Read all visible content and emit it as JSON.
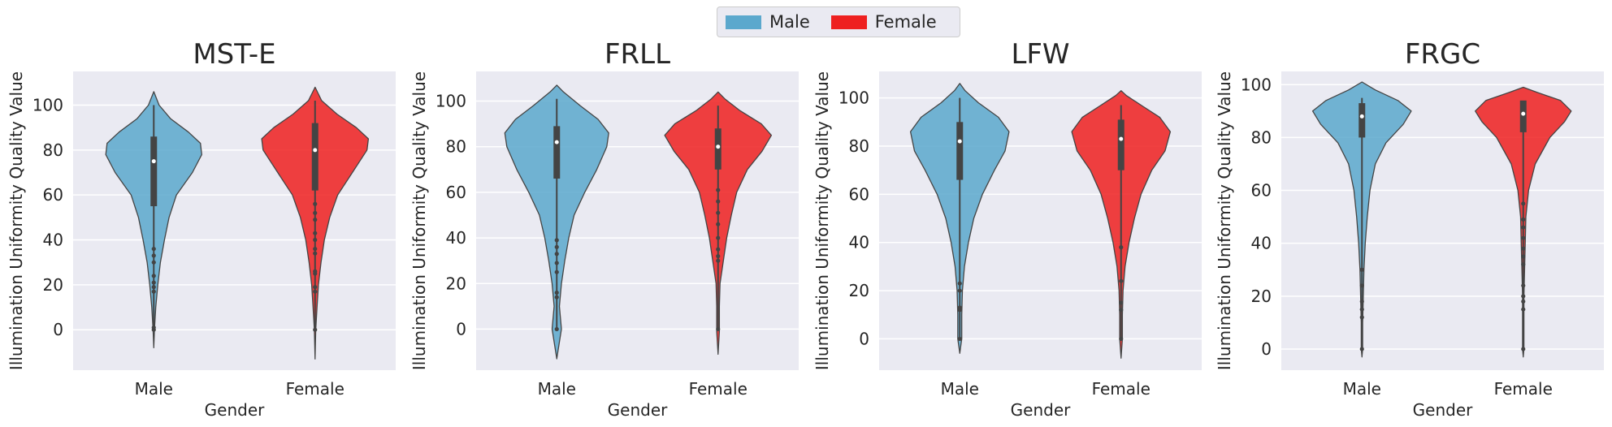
{
  "legend": {
    "items": [
      {
        "label": "Male",
        "color": "#5ba8cd"
      },
      {
        "label": "Female",
        "color": "#ee2020"
      }
    ]
  },
  "chart_data": [
    {
      "type": "violin",
      "title": "MST-E",
      "xlabel": "Gender",
      "ylabel": "Illumination Uniformity Quality Value",
      "categories": [
        "Male",
        "Female"
      ],
      "yticks": [
        0,
        20,
        40,
        60,
        80,
        100
      ],
      "ylim": [
        -18,
        115
      ],
      "grid": true,
      "series": [
        {
          "name": "Male",
          "color": "#5ba8cd",
          "range": [
            -8,
            106
          ],
          "median": 75,
          "q1": 55,
          "q3": 86,
          "profile": [
            [
              -8,
              0
            ],
            [
              0,
              1
            ],
            [
              10,
              3
            ],
            [
              20,
              6
            ],
            [
              30,
              10
            ],
            [
              40,
              16
            ],
            [
              50,
              23
            ],
            [
              60,
              34
            ],
            [
              70,
              58
            ],
            [
              78,
              72
            ],
            [
              83,
              70
            ],
            [
              88,
              52
            ],
            [
              94,
              25
            ],
            [
              100,
              8
            ],
            [
              106,
              0
            ]
          ],
          "outliers": [
            0,
            1,
            17,
            19,
            21,
            24,
            30,
            33,
            36
          ]
        },
        {
          "name": "Female",
          "color": "#ee2020",
          "range": [
            -13,
            108
          ],
          "median": 80,
          "q1": 62,
          "q3": 92,
          "profile": [
            [
              -13,
              0
            ],
            [
              0,
              1
            ],
            [
              10,
              3
            ],
            [
              20,
              5
            ],
            [
              30,
              9
            ],
            [
              40,
              14
            ],
            [
              50,
              22
            ],
            [
              60,
              34
            ],
            [
              70,
              56
            ],
            [
              80,
              78
            ],
            [
              85,
              80
            ],
            [
              90,
              62
            ],
            [
              96,
              33
            ],
            [
              102,
              10
            ],
            [
              108,
              0
            ]
          ],
          "outliers": [
            0,
            17,
            19,
            25,
            26,
            34,
            36,
            40,
            43,
            49,
            52,
            56
          ]
        }
      ]
    },
    {
      "type": "violin",
      "title": "FRLL",
      "xlabel": "Gender",
      "ylabel": "Illumination Uniformity Quality Value",
      "categories": [
        "Male",
        "Female"
      ],
      "yticks": [
        0,
        20,
        40,
        60,
        80,
        100
      ],
      "ylim": [
        -18,
        113
      ],
      "grid": true,
      "series": [
        {
          "name": "Male",
          "color": "#5ba8cd",
          "range": [
            -13,
            107
          ],
          "median": 82,
          "q1": 66,
          "q3": 89,
          "profile": [
            [
              -13,
              0
            ],
            [
              0,
              7
            ],
            [
              10,
              4
            ],
            [
              20,
              7
            ],
            [
              30,
              12
            ],
            [
              40,
              18
            ],
            [
              50,
              26
            ],
            [
              60,
              42
            ],
            [
              70,
              60
            ],
            [
              80,
              75
            ],
            [
              86,
              78
            ],
            [
              92,
              62
            ],
            [
              98,
              35
            ],
            [
              104,
              10
            ],
            [
              107,
              0
            ]
          ],
          "outliers": [
            0,
            14,
            16,
            25,
            29,
            33,
            36,
            39
          ]
        },
        {
          "name": "Female",
          "color": "#ee2020",
          "range": [
            -11,
            104
          ],
          "median": 80,
          "q1": 70,
          "q3": 88,
          "profile": [
            [
              -11,
              0
            ],
            [
              -1,
              2
            ],
            [
              10,
              2
            ],
            [
              20,
              3
            ],
            [
              30,
              8
            ],
            [
              40,
              13
            ],
            [
              50,
              20
            ],
            [
              60,
              28
            ],
            [
              70,
              44
            ],
            [
              78,
              66
            ],
            [
              85,
              80
            ],
            [
              90,
              65
            ],
            [
              96,
              32
            ],
            [
              101,
              10
            ],
            [
              104,
              0
            ]
          ],
          "outliers": [
            0,
            30,
            32,
            35,
            40,
            46,
            51,
            56,
            61
          ]
        }
      ]
    },
    {
      "type": "violin",
      "title": "LFW",
      "xlabel": "Gender",
      "ylabel": "Illumination Uniformity Quality Value",
      "categories": [
        "Male",
        "Female"
      ],
      "yticks": [
        0,
        20,
        40,
        60,
        80,
        100
      ],
      "ylim": [
        -13,
        111
      ],
      "grid": true,
      "series": [
        {
          "name": "Male",
          "color": "#5ba8cd",
          "range": [
            -6,
            106
          ],
          "median": 82,
          "q1": 66,
          "q3": 90,
          "profile": [
            [
              -6,
              0
            ],
            [
              0,
              3
            ],
            [
              10,
              3
            ],
            [
              20,
              4
            ],
            [
              30,
              7
            ],
            [
              40,
              13
            ],
            [
              50,
              21
            ],
            [
              60,
              34
            ],
            [
              70,
              52
            ],
            [
              78,
              68
            ],
            [
              86,
              74
            ],
            [
              92,
              58
            ],
            [
              98,
              28
            ],
            [
              103,
              8
            ],
            [
              106,
              0
            ]
          ],
          "outliers": [
            0,
            12,
            13,
            20,
            23
          ]
        },
        {
          "name": "Female",
          "color": "#ee2020",
          "range": [
            -8,
            103
          ],
          "median": 83,
          "q1": 70,
          "q3": 91,
          "profile": [
            [
              -8,
              0
            ],
            [
              0,
              2
            ],
            [
              10,
              2
            ],
            [
              20,
              3
            ],
            [
              30,
              6
            ],
            [
              40,
              12
            ],
            [
              50,
              20
            ],
            [
              60,
              30
            ],
            [
              70,
              46
            ],
            [
              78,
              66
            ],
            [
              86,
              74
            ],
            [
              92,
              58
            ],
            [
              97,
              30
            ],
            [
              101,
              8
            ],
            [
              103,
              0
            ]
          ],
          "outliers": [
            0,
            12,
            15,
            24,
            38
          ]
        }
      ]
    },
    {
      "type": "violin",
      "title": "FRGC",
      "xlabel": "Gender",
      "ylabel": "Illumination Uniformity Quality Value",
      "categories": [
        "Male",
        "Female"
      ],
      "yticks": [
        0,
        20,
        40,
        60,
        80,
        100
      ],
      "ylim": [
        -8,
        105
      ],
      "grid": true,
      "series": [
        {
          "name": "Male",
          "color": "#5ba8cd",
          "range": [
            -3,
            101
          ],
          "median": 88,
          "q1": 80,
          "q3": 93,
          "profile": [
            [
              -3,
              0
            ],
            [
              0,
              1
            ],
            [
              10,
              1
            ],
            [
              20,
              2
            ],
            [
              30,
              3
            ],
            [
              40,
              5
            ],
            [
              50,
              8
            ],
            [
              60,
              12
            ],
            [
              70,
              20
            ],
            [
              78,
              36
            ],
            [
              85,
              62
            ],
            [
              90,
              74
            ],
            [
              94,
              54
            ],
            [
              98,
              20
            ],
            [
              101,
              0
            ]
          ],
          "outliers": [
            0,
            12,
            15,
            18,
            24,
            30
          ]
        },
        {
          "name": "Female",
          "color": "#ee2020",
          "range": [
            -3,
            99
          ],
          "median": 89,
          "q1": 82,
          "q3": 94,
          "profile": [
            [
              -3,
              0
            ],
            [
              0,
              1
            ],
            [
              10,
              1
            ],
            [
              20,
              1
            ],
            [
              30,
              2
            ],
            [
              40,
              3
            ],
            [
              50,
              4
            ],
            [
              60,
              8
            ],
            [
              70,
              18
            ],
            [
              80,
              40
            ],
            [
              86,
              62
            ],
            [
              90,
              72
            ],
            [
              94,
              56
            ],
            [
              97,
              22
            ],
            [
              99,
              0
            ]
          ],
          "outliers": [
            0,
            15,
            18,
            20,
            24,
            32,
            35,
            38,
            42,
            46,
            49,
            55
          ]
        }
      ]
    }
  ]
}
